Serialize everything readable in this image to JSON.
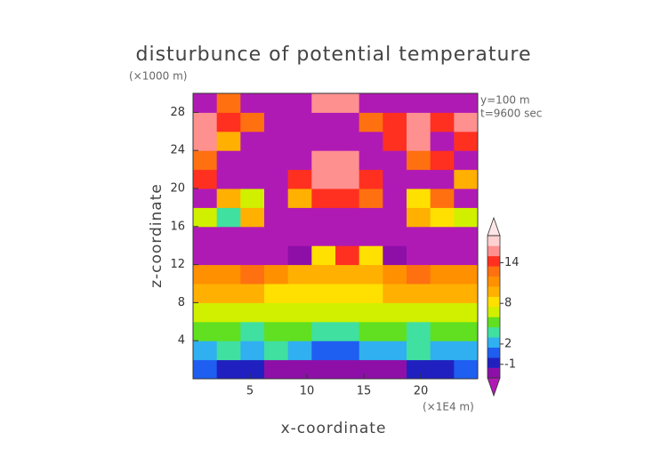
{
  "chart_data": {
    "type": "heatmap",
    "title": "disturbunce of potential temperature",
    "y_unit": "(×1000 m)",
    "x_unit": "(×1E4 m)",
    "annotations": [
      "y=100 m",
      "t=9600 sec"
    ],
    "x_label": "x-coordinate",
    "y_label": "z-coordinate",
    "xlim": [
      0,
      25
    ],
    "ylim": [
      0,
      30
    ],
    "xticks": [
      5,
      10,
      15,
      20
    ],
    "yticks": [
      4,
      8,
      12,
      16,
      20,
      24,
      28
    ],
    "z": [
      [
        0,
        -1,
        -1,
        -2,
        -2,
        -2,
        -2,
        -2,
        -2,
        -1,
        -1,
        0
      ],
      [
        2,
        3,
        2,
        3,
        2,
        1,
        1,
        2,
        2,
        3,
        2,
        2
      ],
      [
        5,
        5,
        4,
        5,
        5,
        4,
        4,
        5,
        5,
        4,
        5,
        5
      ],
      [
        7,
        7,
        6,
        7,
        7,
        7,
        7,
        7,
        7,
        6,
        7,
        7
      ],
      [
        9,
        9,
        10,
        8,
        8,
        8,
        8,
        8,
        9,
        10,
        9,
        9
      ],
      [
        11,
        11,
        13,
        11,
        10,
        10,
        10,
        10,
        11,
        13,
        11,
        11
      ],
      [
        -4,
        -4,
        -4,
        -4,
        -3,
        8,
        14,
        8,
        -3,
        -4,
        -4,
        -4
      ],
      [
        -4,
        -4,
        -4,
        -4,
        -4,
        -4,
        -4,
        -4,
        -4,
        -4,
        -4,
        -4
      ],
      [
        6,
        4,
        10,
        -4,
        -4,
        -4,
        -4,
        -4,
        -4,
        10,
        8,
        6
      ],
      [
        -4,
        10,
        6,
        -4,
        10,
        14,
        14,
        12,
        -4,
        8,
        12,
        -4
      ],
      [
        14,
        -4,
        -4,
        -4,
        14,
        16,
        16,
        14,
        -4,
        -4,
        -4,
        10
      ],
      [
        12,
        -4,
        -4,
        -4,
        -4,
        16,
        16,
        -4,
        -4,
        12,
        14,
        -4
      ],
      [
        16,
        10,
        -4,
        -4,
        -4,
        -4,
        -4,
        -4,
        14,
        16,
        -4,
        14
      ],
      [
        16,
        14,
        12,
        -4,
        -4,
        -4,
        -4,
        12,
        14,
        16,
        14,
        16
      ],
      [
        -4,
        12,
        -4,
        -4,
        -4,
        16,
        16,
        -4,
        -4,
        -4,
        -4,
        -4
      ]
    ],
    "colorbar": {
      "ylim": [
        -3,
        18
      ],
      "yticks": [
        -1,
        2,
        8,
        14
      ],
      "under_color": "#b01ab4",
      "over_color": "#ffe6e6",
      "colors": [
        "#8e0fa8",
        "#2020c0",
        "#1e5ef0",
        "#30b0f0",
        "#40e0a0",
        "#60e020",
        "#d0f000",
        "#ffe000",
        "#ffb000",
        "#ff9000",
        "#ff7010",
        "#ff3020",
        "#ff9090",
        "#ffd0d0"
      ]
    }
  }
}
